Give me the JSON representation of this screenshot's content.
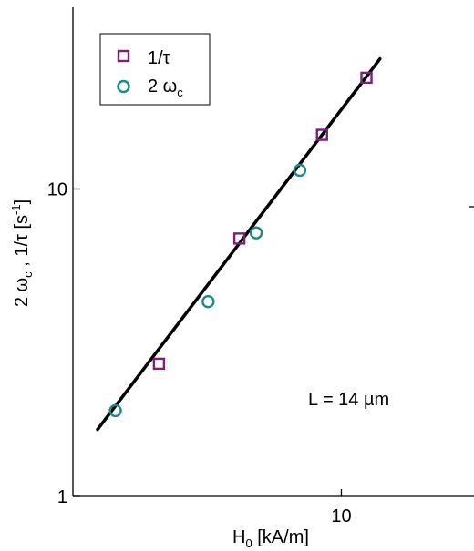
{
  "chart_data": {
    "type": "scatter",
    "x_scale": "log",
    "y_scale": "log",
    "xlim": [
      1.7,
      24
    ],
    "ylim": [
      1,
      39
    ],
    "x_ticks": [
      {
        "value": 10,
        "label": "10"
      }
    ],
    "y_ticks": [
      {
        "value": 1,
        "label": "1"
      },
      {
        "value": 10,
        "label": "10"
      }
    ],
    "xlabel": {
      "main": "H",
      "sub": "0",
      "rest": " [kA/m]"
    },
    "ylabel": {
      "p1": "2 ω",
      "p1sub": "c",
      "p2": " ,  1/τ  [s",
      "p2sup": "-1",
      "p3": "]"
    },
    "legend_position": "top-left",
    "series": [
      {
        "name": "1/τ",
        "marker": "square",
        "color": "#7b1f7b",
        "points": [
          [
            3.0,
            2.7
          ],
          [
            5.1,
            6.9
          ],
          [
            8.8,
            15.0
          ],
          [
            11.8,
            23.0
          ]
        ]
      },
      {
        "name": "2 ω",
        "name_sub": "c",
        "marker": "circle",
        "color": "#1b8a8a",
        "points": [
          [
            2.25,
            1.9
          ],
          [
            4.15,
            4.3
          ],
          [
            5.7,
            7.2
          ],
          [
            7.6,
            11.5
          ]
        ]
      }
    ],
    "fit_line": {
      "color": "#000000",
      "points": [
        [
          2.0,
          1.65
        ],
        [
          12.9,
          26.5
        ]
      ]
    },
    "annotation": "L = 14 µm"
  }
}
